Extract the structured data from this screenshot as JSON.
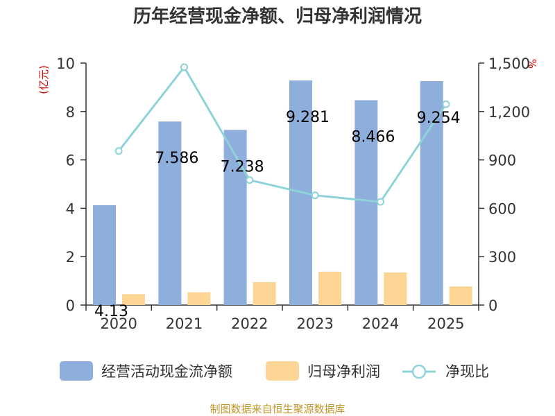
{
  "chart_data": {
    "type": "bar",
    "title": "历年经营现金净额、归母净利润情况",
    "categories": [
      "2020",
      "2021",
      "2022",
      "2023",
      "2024",
      "2025"
    ],
    "left_axis": {
      "unit": "(亿元)",
      "range": [
        0,
        10
      ],
      "ticks": [
        "0",
        "2",
        "4",
        "6",
        "8",
        "10"
      ]
    },
    "right_axis": {
      "unit": "%",
      "range": [
        0,
        1500
      ],
      "ticks": [
        "0",
        "300",
        "600",
        "900",
        "1,200",
        "1,500"
      ]
    },
    "series": [
      {
        "name": "经营活动现金流净额",
        "kind": "bar",
        "axis": "left",
        "color": "#8eaedb",
        "values": [
          4.13,
          7.586,
          7.238,
          9.281,
          8.466,
          9.254
        ],
        "labels": [
          "4.13",
          "7.586",
          "7.238",
          "9.281",
          "8.466",
          "9.254"
        ]
      },
      {
        "name": "归母净利润",
        "kind": "bar",
        "axis": "left",
        "color": "#fdd696",
        "values": [
          0.45,
          0.53,
          0.95,
          1.38,
          1.35,
          0.77
        ]
      },
      {
        "name": "净现比",
        "kind": "line",
        "axis": "right",
        "color": "#8dd3d8",
        "values": [
          955,
          1475,
          775,
          680,
          640,
          1245
        ]
      }
    ],
    "legend_position": "bottom"
  },
  "footer": "制图数据来自恒生聚源数据库"
}
